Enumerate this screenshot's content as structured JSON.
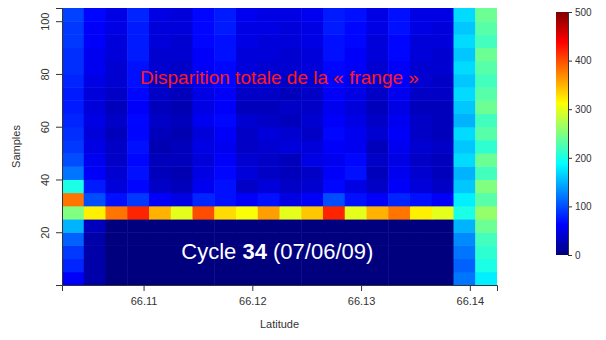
{
  "chart_data": {
    "type": "heatmap",
    "xlabel": "Latitude",
    "ylabel": "Samples",
    "xlim": [
      66.1025,
      66.1425
    ],
    "ylim": [
      0,
      105
    ],
    "xticks": [
      66.11,
      66.12,
      66.13,
      66.14
    ],
    "yticks": [
      20,
      40,
      60,
      80,
      100
    ],
    "x_bins": [
      66.1025,
      66.1045,
      66.1065,
      66.1085,
      66.1105,
      66.1125,
      66.1145,
      66.1165,
      66.1185,
      66.1205,
      66.1225,
      66.1245,
      66.1265,
      66.1285,
      66.1305,
      66.1325,
      66.1345,
      66.1365,
      66.1385,
      66.1405,
      66.1425
    ],
    "y_bins": [
      0,
      5,
      10,
      15,
      20,
      25,
      30,
      35,
      40,
      45,
      50,
      55,
      60,
      65,
      70,
      75,
      80,
      85,
      90,
      95,
      100,
      105
    ],
    "cells": [
      [
        60,
        20,
        0,
        0,
        0,
        0,
        0,
        0,
        0,
        0,
        0,
        0,
        0,
        0,
        0,
        0,
        0,
        0,
        120,
        180
      ],
      [
        80,
        20,
        0,
        0,
        0,
        0,
        0,
        0,
        0,
        0,
        0,
        0,
        0,
        0,
        0,
        0,
        0,
        0,
        110,
        200
      ],
      [
        90,
        20,
        0,
        0,
        0,
        0,
        0,
        0,
        0,
        0,
        0,
        0,
        0,
        0,
        0,
        0,
        0,
        0,
        120,
        210
      ],
      [
        110,
        20,
        0,
        0,
        0,
        0,
        0,
        0,
        0,
        0,
        0,
        0,
        0,
        0,
        0,
        0,
        0,
        0,
        130,
        220
      ],
      [
        150,
        30,
        0,
        0,
        0,
        0,
        0,
        0,
        0,
        0,
        0,
        0,
        0,
        0,
        0,
        0,
        0,
        0,
        150,
        240
      ],
      [
        250,
        320,
        380,
        420,
        350,
        300,
        400,
        330,
        310,
        360,
        300,
        340,
        420,
        300,
        350,
        380,
        320,
        300,
        200,
        260
      ],
      [
        380,
        100,
        70,
        90,
        60,
        50,
        80,
        70,
        60,
        70,
        50,
        60,
        100,
        70,
        60,
        80,
        70,
        60,
        180,
        230
      ],
      [
        200,
        75,
        45,
        65,
        35,
        30,
        55,
        70,
        35,
        45,
        35,
        40,
        65,
        50,
        35,
        60,
        45,
        35,
        160,
        250
      ],
      [
        120,
        60,
        40,
        70,
        30,
        25,
        50,
        65,
        45,
        35,
        30,
        35,
        60,
        70,
        30,
        55,
        40,
        30,
        150,
        220
      ],
      [
        100,
        55,
        35,
        65,
        30,
        30,
        45,
        60,
        40,
        35,
        30,
        50,
        55,
        65,
        35,
        50,
        35,
        30,
        170,
        240
      ],
      [
        90,
        50,
        35,
        70,
        25,
        30,
        50,
        55,
        35,
        40,
        45,
        45,
        60,
        55,
        30,
        55,
        40,
        35,
        160,
        210
      ],
      [
        85,
        45,
        30,
        65,
        30,
        25,
        45,
        60,
        35,
        45,
        40,
        35,
        65,
        55,
        40,
        60,
        35,
        30,
        170,
        230
      ],
      [
        80,
        50,
        35,
        65,
        35,
        30,
        55,
        65,
        40,
        35,
        30,
        40,
        60,
        50,
        35,
        55,
        35,
        30,
        150,
        220
      ],
      [
        75,
        45,
        30,
        60,
        30,
        25,
        50,
        60,
        30,
        30,
        35,
        35,
        55,
        45,
        30,
        50,
        30,
        30,
        160,
        240
      ],
      [
        75,
        45,
        35,
        65,
        35,
        30,
        50,
        60,
        35,
        35,
        30,
        35,
        60,
        50,
        35,
        55,
        35,
        35,
        170,
        230
      ],
      [
        80,
        50,
        40,
        70,
        35,
        35,
        55,
        65,
        40,
        40,
        35,
        40,
        65,
        55,
        40,
        60,
        40,
        35,
        160,
        220
      ],
      [
        85,
        55,
        40,
        70,
        40,
        35,
        60,
        65,
        45,
        40,
        40,
        45,
        65,
        60,
        40,
        60,
        40,
        40,
        170,
        230
      ],
      [
        85,
        55,
        45,
        75,
        40,
        40,
        60,
        70,
        45,
        45,
        40,
        45,
        70,
        60,
        45,
        65,
        45,
        40,
        160,
        240
      ],
      [
        90,
        60,
        45,
        75,
        45,
        40,
        65,
        70,
        50,
        45,
        45,
        50,
        70,
        65,
        45,
        65,
        45,
        45,
        170,
        220
      ],
      [
        90,
        60,
        50,
        75,
        45,
        45,
        65,
        75,
        50,
        50,
        45,
        50,
        75,
        65,
        50,
        70,
        50,
        45,
        160,
        230
      ],
      [
        95,
        65,
        50,
        80,
        50,
        45,
        65,
        75,
        55,
        50,
        50,
        55,
        75,
        70,
        50,
        70,
        50,
        50,
        170,
        240
      ]
    ],
    "colorbar": {
      "range": [
        0,
        500
      ],
      "ticks": [
        0,
        100,
        200,
        300,
        400,
        500
      ]
    },
    "annotations": [
      {
        "text": "Disparition totale de la « frange »",
        "x": 66.1225,
        "y": 78,
        "color": "#ff1a1a"
      },
      {
        "text": "Cycle 34 (07/06/09)",
        "x": 66.1223,
        "y": 12,
        "color": "#ffffff"
      }
    ]
  }
}
